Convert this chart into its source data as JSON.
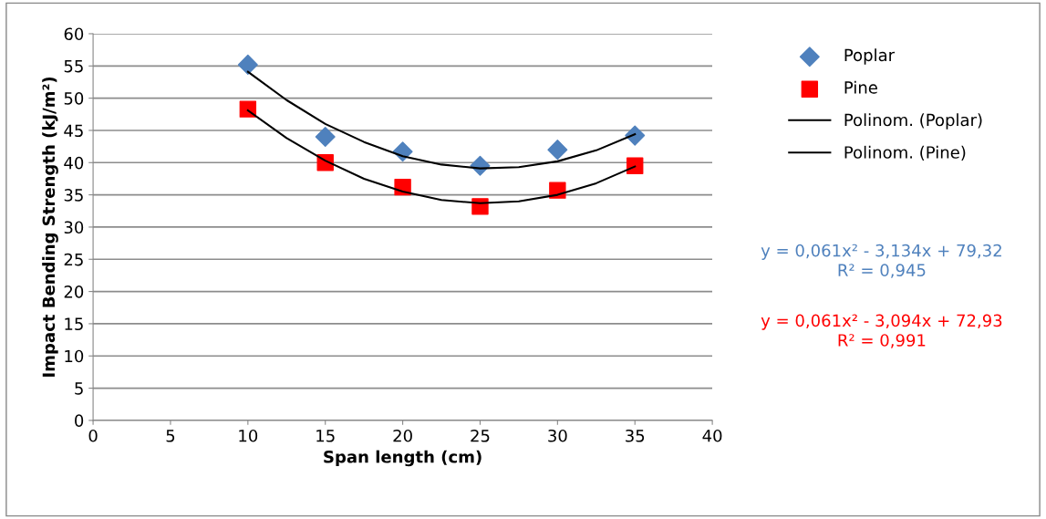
{
  "chart_data": {
    "type": "scatter",
    "xlabel": "Span length (cm)",
    "ylabel": "Impact Bending Strength (kJ/m²)",
    "x": [
      10,
      15,
      20,
      25,
      30,
      35
    ],
    "series": [
      {
        "name": "Poplar",
        "color": "#4f81bd",
        "marker": "diamond",
        "values": [
          55.2,
          44.0,
          41.7,
          39.5,
          42.0,
          44.2
        ]
      },
      {
        "name": "Pine",
        "color": "#ff0000",
        "marker": "square",
        "values": [
          48.3,
          40.0,
          36.2,
          33.2,
          35.7,
          39.5
        ]
      },
      {
        "name": "Polinom. (Poplar)",
        "type": "line",
        "color": "#000000",
        "marker": "none",
        "x": [
          10,
          12.5,
          15,
          17.5,
          20,
          22.5,
          25,
          27.5,
          30,
          32.5,
          35
        ],
        "values": [
          54.1,
          49.7,
          46.0,
          43.2,
          41.0,
          39.7,
          39.1,
          39.3,
          40.2,
          41.9,
          44.4
        ]
      },
      {
        "name": "Polinom. (Pine)",
        "type": "line",
        "color": "#000000",
        "marker": "none",
        "x": [
          10,
          12.5,
          15,
          17.5,
          20,
          22.5,
          25,
          27.5,
          30,
          32.5,
          35
        ],
        "values": [
          48.1,
          43.8,
          40.3,
          37.5,
          35.5,
          34.2,
          33.7,
          34.0,
          35.0,
          36.8,
          39.4
        ]
      }
    ],
    "xlim": [
      0,
      40
    ],
    "xticks": [
      0,
      5,
      10,
      15,
      20,
      25,
      30,
      35,
      40
    ],
    "ylim": [
      0,
      60
    ],
    "yticks": [
      0,
      5,
      10,
      15,
      20,
      25,
      30,
      35,
      40,
      45,
      50,
      55,
      60
    ],
    "grid": "y",
    "legend": "right",
    "annotations": [
      "y = 0,061x² - 3,134x + 79,32\nR² = 0,945",
      "y = 0,061x² - 3,094x + 72,93\nR² = 0,991"
    ]
  }
}
